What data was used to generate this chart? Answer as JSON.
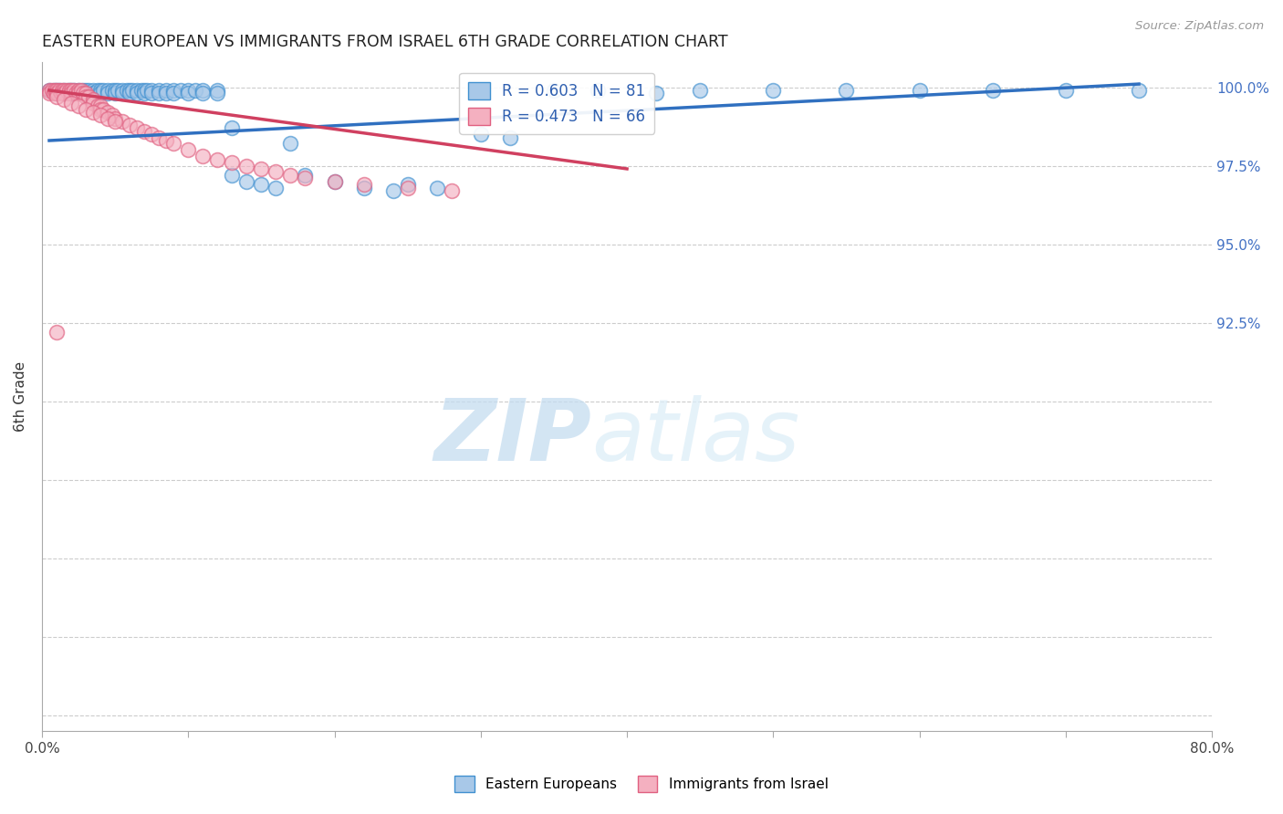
{
  "title": "EASTERN EUROPEAN VS IMMIGRANTS FROM ISRAEL 6TH GRADE CORRELATION CHART",
  "source": "Source: ZipAtlas.com",
  "ylabel": "6th Grade",
  "xlim": [
    0.0,
    0.8
  ],
  "ylim": [
    0.795,
    1.008
  ],
  "xticks": [
    0.0,
    0.1,
    0.2,
    0.3,
    0.4,
    0.5,
    0.6,
    0.7,
    0.8
  ],
  "xticklabels": [
    "0.0%",
    "",
    "",
    "",
    "",
    "",
    "",
    "",
    "80.0%"
  ],
  "ytick_positions": [
    0.8,
    0.825,
    0.85,
    0.875,
    0.9,
    0.925,
    0.95,
    0.975,
    1.0
  ],
  "ytick_labels": [
    "",
    "",
    "",
    "",
    "",
    "92.5%",
    "95.0%",
    "97.5%",
    "100.0%"
  ],
  "legend_r1": "R = 0.603",
  "legend_n1": "N = 81",
  "legend_r2": "R = 0.473",
  "legend_n2": "N = 66",
  "color_blue_fill": "#a8c8e8",
  "color_blue_edge": "#4090d0",
  "color_blue_line": "#3070c0",
  "color_pink_fill": "#f4b0c0",
  "color_pink_edge": "#e06080",
  "color_pink_line": "#d04060",
  "watermark_zip": "ZIP",
  "watermark_atlas": "atlas",
  "blue_x": [
    0.005,
    0.008,
    0.01,
    0.01,
    0.012,
    0.015,
    0.015,
    0.018,
    0.02,
    0.02,
    0.022,
    0.025,
    0.025,
    0.028,
    0.03,
    0.03,
    0.032,
    0.035,
    0.035,
    0.038,
    0.04,
    0.04,
    0.042,
    0.045,
    0.045,
    0.048,
    0.05,
    0.05,
    0.052,
    0.055,
    0.055,
    0.058,
    0.06,
    0.06,
    0.062,
    0.065,
    0.065,
    0.068,
    0.07,
    0.07,
    0.072,
    0.075,
    0.075,
    0.08,
    0.08,
    0.085,
    0.085,
    0.09,
    0.09,
    0.095,
    0.1,
    0.1,
    0.105,
    0.11,
    0.11,
    0.12,
    0.12,
    0.13,
    0.13,
    0.14,
    0.15,
    0.16,
    0.17,
    0.18,
    0.2,
    0.22,
    0.24,
    0.25,
    0.27,
    0.3,
    0.32,
    0.35,
    0.38,
    0.42,
    0.45,
    0.5,
    0.55,
    0.6,
    0.65,
    0.7,
    0.75
  ],
  "blue_y": [
    0.999,
    0.999,
    0.999,
    0.998,
    0.999,
    0.999,
    0.998,
    0.999,
    0.999,
    0.998,
    0.999,
    0.999,
    0.998,
    0.999,
    0.999,
    0.998,
    0.999,
    0.999,
    0.998,
    0.999,
    0.999,
    0.998,
    0.999,
    0.999,
    0.998,
    0.999,
    0.999,
    0.998,
    0.999,
    0.999,
    0.998,
    0.999,
    0.999,
    0.998,
    0.999,
    0.999,
    0.998,
    0.999,
    0.999,
    0.998,
    0.999,
    0.999,
    0.998,
    0.999,
    0.998,
    0.999,
    0.998,
    0.999,
    0.998,
    0.999,
    0.999,
    0.998,
    0.999,
    0.999,
    0.998,
    0.999,
    0.998,
    0.987,
    0.972,
    0.97,
    0.969,
    0.968,
    0.982,
    0.972,
    0.97,
    0.968,
    0.967,
    0.969,
    0.968,
    0.985,
    0.984,
    0.999,
    0.999,
    0.998,
    0.999,
    0.999,
    0.999,
    0.999,
    0.999,
    0.999,
    0.999
  ],
  "pink_x": [
    0.005,
    0.005,
    0.007,
    0.008,
    0.009,
    0.01,
    0.01,
    0.012,
    0.013,
    0.014,
    0.015,
    0.015,
    0.017,
    0.018,
    0.019,
    0.02,
    0.02,
    0.022,
    0.023,
    0.025,
    0.025,
    0.027,
    0.028,
    0.03,
    0.03,
    0.032,
    0.035,
    0.035,
    0.038,
    0.04,
    0.04,
    0.042,
    0.045,
    0.048,
    0.05,
    0.055,
    0.06,
    0.065,
    0.07,
    0.075,
    0.08,
    0.085,
    0.09,
    0.1,
    0.11,
    0.12,
    0.13,
    0.14,
    0.15,
    0.16,
    0.17,
    0.18,
    0.2,
    0.22,
    0.25,
    0.28,
    0.01,
    0.015,
    0.02,
    0.025,
    0.03,
    0.035,
    0.04,
    0.045,
    0.05,
    0.01
  ],
  "pink_y": [
    0.999,
    0.998,
    0.999,
    0.998,
    0.999,
    0.999,
    0.998,
    0.999,
    0.998,
    0.999,
    0.999,
    0.998,
    0.999,
    0.998,
    0.999,
    0.999,
    0.998,
    0.999,
    0.998,
    0.999,
    0.998,
    0.999,
    0.998,
    0.998,
    0.997,
    0.997,
    0.996,
    0.995,
    0.994,
    0.994,
    0.993,
    0.993,
    0.992,
    0.991,
    0.99,
    0.989,
    0.988,
    0.987,
    0.986,
    0.985,
    0.984,
    0.983,
    0.982,
    0.98,
    0.978,
    0.977,
    0.976,
    0.975,
    0.974,
    0.973,
    0.972,
    0.971,
    0.97,
    0.969,
    0.968,
    0.967,
    0.997,
    0.996,
    0.995,
    0.994,
    0.993,
    0.992,
    0.991,
    0.99,
    0.989,
    0.922
  ],
  "blue_trendline_x": [
    0.005,
    0.75
  ],
  "blue_trendline_y": [
    0.983,
    1.001
  ],
  "pink_trendline_x": [
    0.005,
    0.4
  ],
  "pink_trendline_y": [
    0.999,
    0.974
  ]
}
